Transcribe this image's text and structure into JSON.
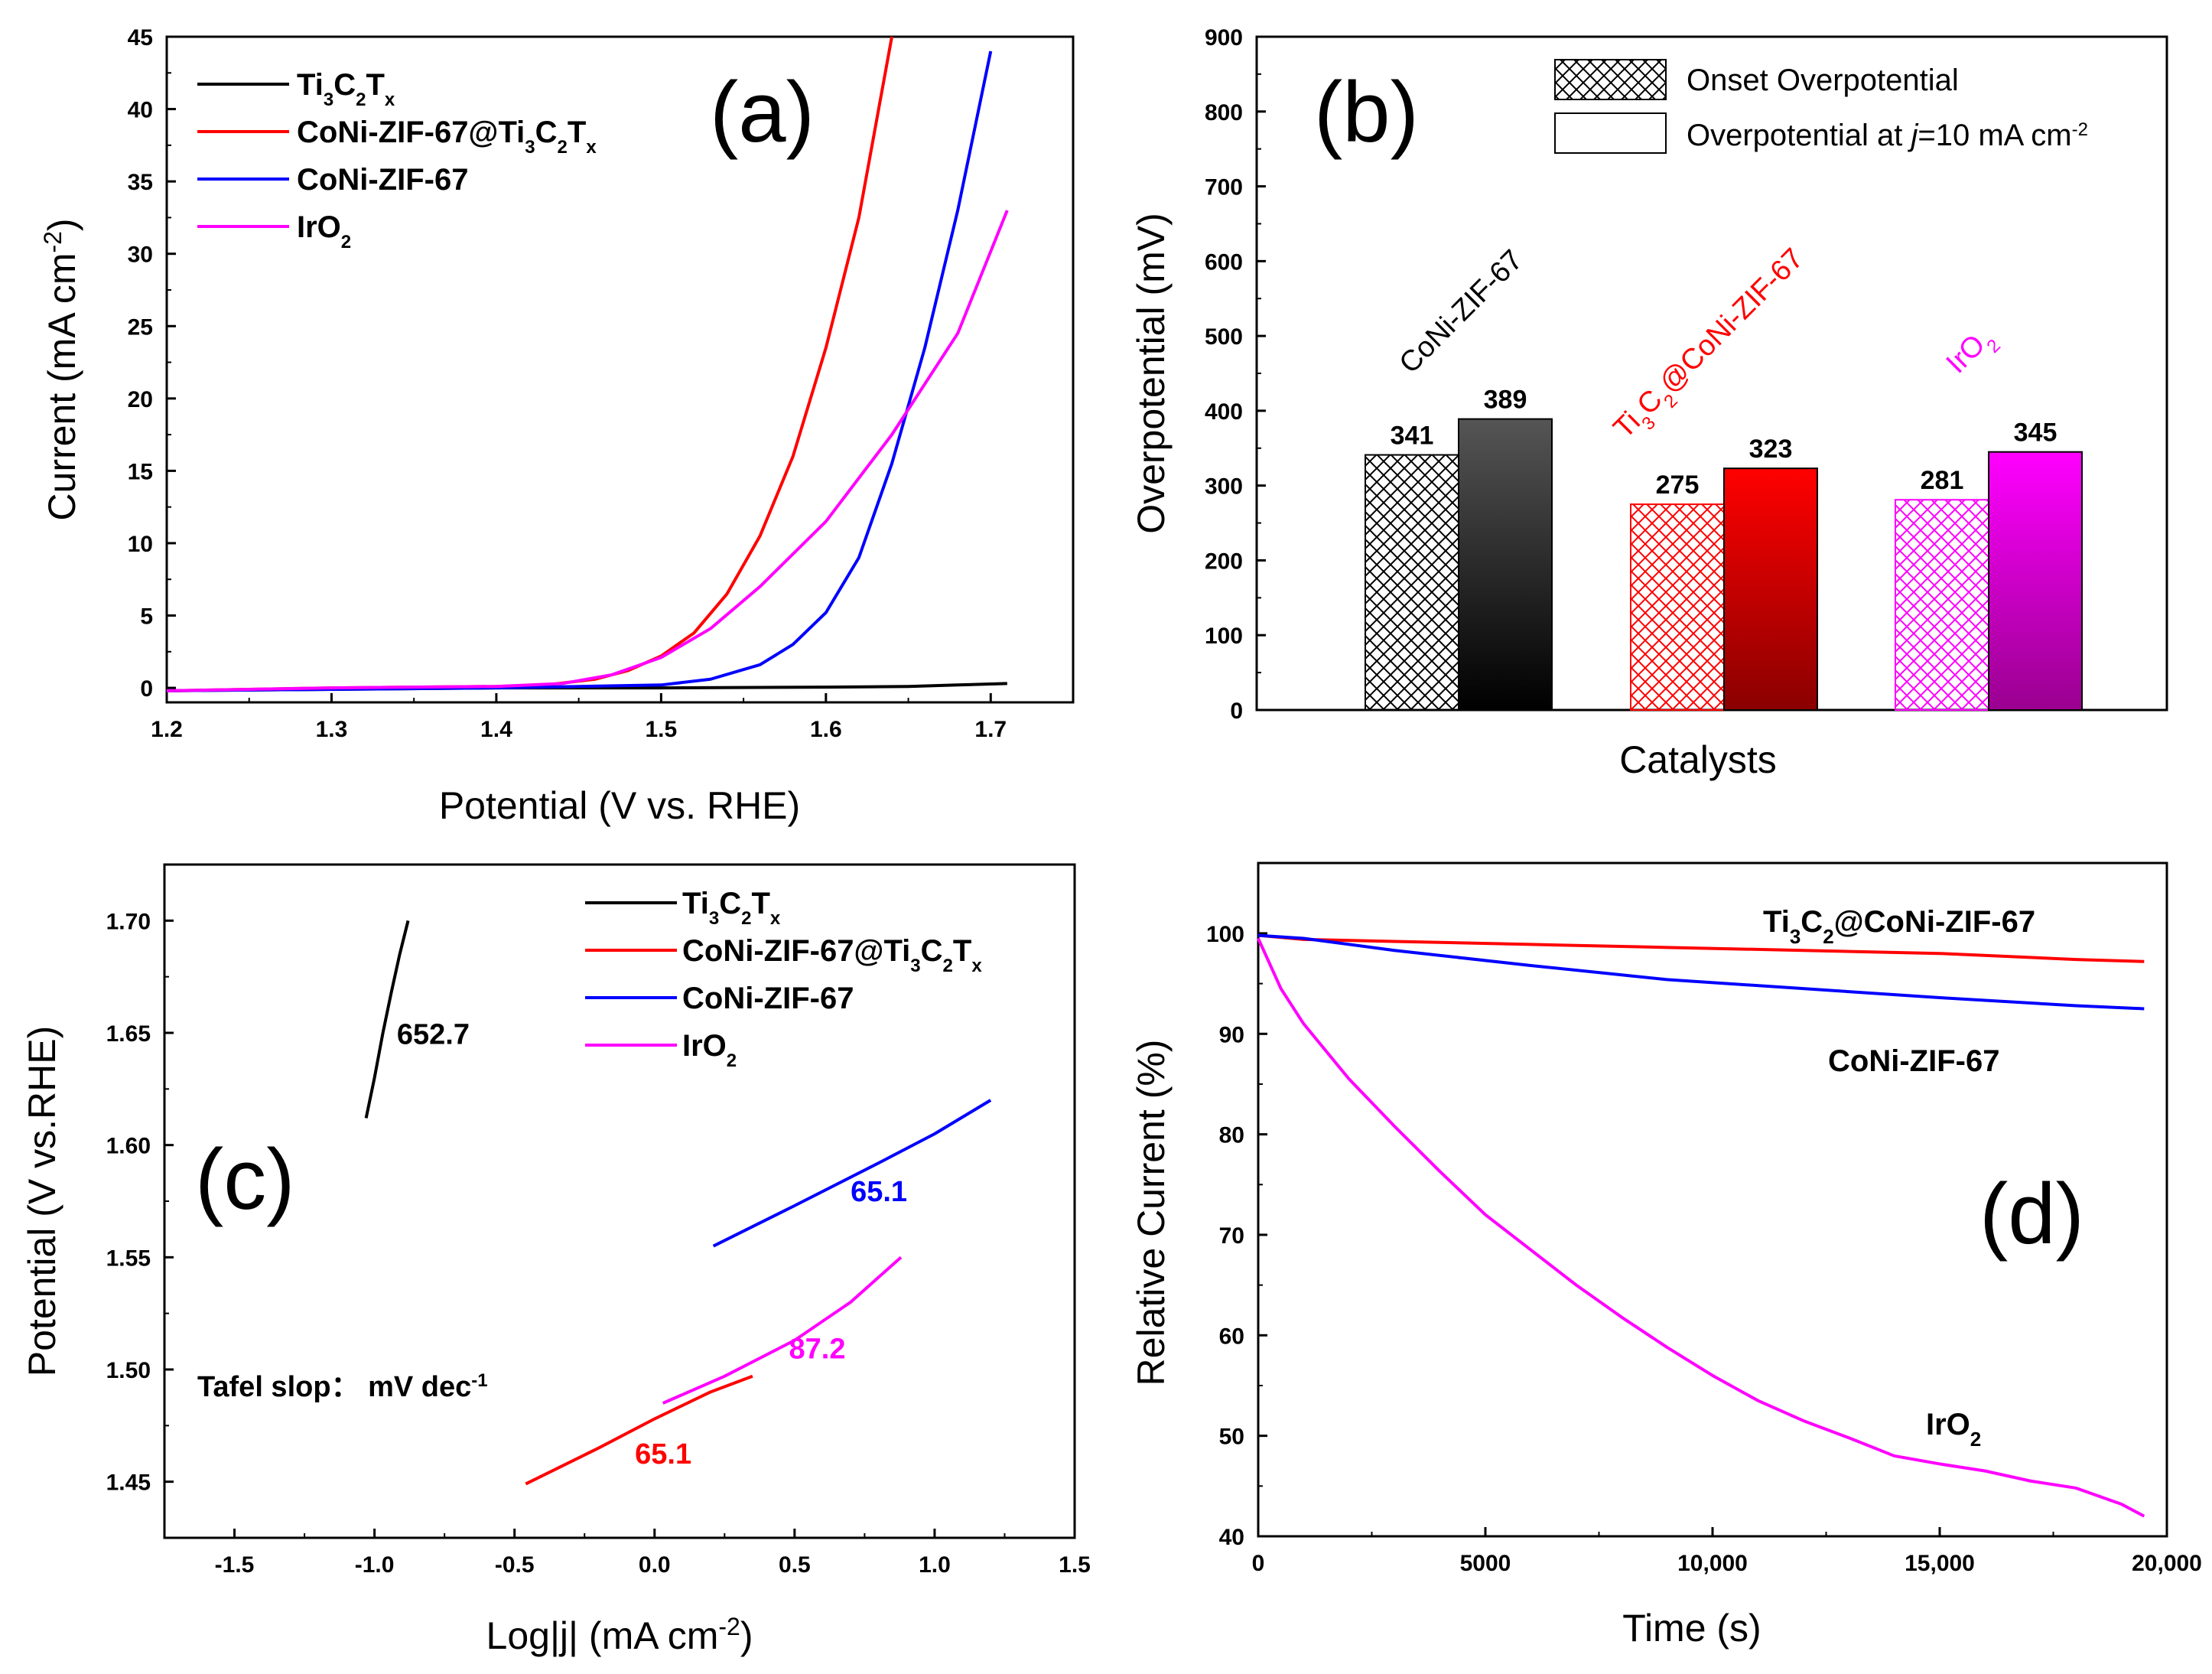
{
  "chart_data": [
    {
      "panel": "(a)",
      "type": "line",
      "xlabel": "Potential (V vs. RHE)",
      "ylabel": "Current (mA cm-2)",
      "ylabel_parts": {
        "main": "Current (mA cm",
        "sup": "-2",
        "close": ")"
      },
      "xlim": [
        1.2,
        1.75
      ],
      "ylim": [
        -1,
        45
      ],
      "xticks": [
        1.2,
        1.3,
        1.4,
        1.5,
        1.6,
        1.7
      ],
      "xtick_labels": [
        "1.2",
        "1.3",
        "1.4",
        "1.5",
        "1.6",
        "1.7"
      ],
      "yticks": [
        0,
        5,
        10,
        15,
        20,
        25,
        30,
        35,
        40,
        45
      ],
      "ytick_labels": [
        "0",
        "5",
        "10",
        "15",
        "20",
        "25",
        "30",
        "35",
        "40",
        "45"
      ],
      "legend_position": "top-left",
      "series": [
        {
          "name": "Ti3C2Tx",
          "name_parts": [
            [
              "Ti",
              ""
            ],
            [
              "3",
              "sub"
            ],
            [
              "C",
              ""
            ],
            [
              "2",
              "sub"
            ],
            [
              "T",
              ""
            ],
            [
              "x",
              "sub"
            ]
          ],
          "color": "#000000",
          "x": [
            1.2,
            1.3,
            1.4,
            1.5,
            1.6,
            1.65,
            1.68,
            1.71
          ],
          "y": [
            -0.2,
            -0.1,
            0.0,
            0.0,
            0.05,
            0.1,
            0.2,
            0.3
          ]
        },
        {
          "name": "CoNi-ZIF-67@Ti3C2Tx",
          "name_parts": [
            [
              "CoNi-ZIF-67@Ti",
              ""
            ],
            [
              "3",
              "sub"
            ],
            [
              "C",
              ""
            ],
            [
              "2",
              "sub"
            ],
            [
              "T",
              ""
            ],
            [
              "x",
              "sub"
            ]
          ],
          "color": "#ff0000",
          "x": [
            1.2,
            1.3,
            1.4,
            1.43,
            1.46,
            1.48,
            1.5,
            1.52,
            1.54,
            1.56,
            1.58,
            1.6,
            1.62,
            1.64
          ],
          "y": [
            -0.2,
            0.0,
            0.1,
            0.2,
            0.6,
            1.2,
            2.2,
            3.8,
            6.5,
            10.5,
            16,
            23.5,
            32.5,
            45
          ]
        },
        {
          "name": "CoNi-ZIF-67",
          "name_parts": [
            [
              "CoNi-ZIF-67",
              ""
            ]
          ],
          "color": "#0000ff",
          "x": [
            1.2,
            1.3,
            1.4,
            1.5,
            1.53,
            1.56,
            1.58,
            1.6,
            1.62,
            1.64,
            1.66,
            1.68,
            1.7
          ],
          "y": [
            -0.2,
            -0.1,
            0.0,
            0.2,
            0.6,
            1.6,
            3.0,
            5.2,
            9.0,
            15.5,
            23.5,
            33,
            44
          ]
        },
        {
          "name": "IrO2",
          "name_parts": [
            [
              "IrO",
              ""
            ],
            [
              "2",
              "sub"
            ]
          ],
          "color": "#ff00ff",
          "x": [
            1.2,
            1.3,
            1.4,
            1.44,
            1.47,
            1.5,
            1.53,
            1.56,
            1.6,
            1.64,
            1.68,
            1.71
          ],
          "y": [
            -0.2,
            0.0,
            0.1,
            0.3,
            0.9,
            2.1,
            4.1,
            7.0,
            11.5,
            17.5,
            24.5,
            33
          ]
        }
      ],
      "annotations": []
    },
    {
      "panel": "(b)",
      "type": "bar",
      "xlabel": "Catalysts",
      "ylabel": "Overpotential (mV)",
      "ylim": [
        0,
        900
      ],
      "yticks": [
        0,
        100,
        200,
        300,
        400,
        500,
        600,
        700,
        800,
        900
      ],
      "ytick_labels": [
        "0",
        "100",
        "200",
        "300",
        "400",
        "500",
        "600",
        "700",
        "800",
        "900"
      ],
      "categories": [
        "CoNi-ZIF-67",
        "Ti3C2@CoNi-ZIF-67",
        "IrO2"
      ],
      "category_parts": [
        [
          [
            "CoNi-ZIF-67",
            ""
          ]
        ],
        [
          [
            "Ti",
            ""
          ],
          [
            "3",
            "sub"
          ],
          [
            "C",
            ""
          ],
          [
            "2",
            "sub"
          ],
          [
            "@CoNi-ZIF-67",
            ""
          ]
        ],
        [
          [
            "IrO",
            ""
          ],
          [
            "2",
            "sub"
          ]
        ]
      ],
      "category_colors": [
        "#000000",
        "#ff0000",
        "#ff00ff"
      ],
      "series": [
        {
          "name": "Onset Overpotential",
          "pattern": "crosshatch",
          "values": [
            341,
            275,
            281
          ]
        },
        {
          "name": "Overpotential at j=10 mA cm-2",
          "pattern": "gradient",
          "values": [
            389,
            323,
            345
          ]
        }
      ],
      "legend_labels": {
        "onset": "Onset Overpotential",
        "at10_pre": "Overpotential at ",
        "at10_j": "j",
        "at10_mid": "=10 mA cm",
        "at10_sup": "-2"
      },
      "legend_position": "top-right"
    },
    {
      "panel": "(c)",
      "type": "line",
      "xlabel": "Log|j| (mA cm-2)",
      "xlabel_parts": {
        "main": "Log|j| (mA cm",
        "sup": "-2",
        "close": ")"
      },
      "ylabel": "Potential (V vs.RHE)",
      "xlim": [
        -1.75,
        1.5
      ],
      "ylim": [
        1.425,
        1.725
      ],
      "xticks": [
        -1.5,
        -1.0,
        -0.5,
        0.0,
        0.5,
        1.0,
        1.5
      ],
      "xtick_labels": [
        "-1.5",
        "-1.0",
        "-0.5",
        "0.0",
        "0.5",
        "1.0",
        "1.5"
      ],
      "yticks": [
        1.45,
        1.5,
        1.55,
        1.6,
        1.65,
        1.7
      ],
      "ytick_labels": [
        "1.45",
        "1.50",
        "1.55",
        "1.60",
        "1.65",
        "1.70"
      ],
      "legend_position": "top-right",
      "series": [
        {
          "name": "Ti3C2Tx",
          "name_parts": [
            [
              "Ti",
              ""
            ],
            [
              "3",
              "sub"
            ],
            [
              "C",
              ""
            ],
            [
              "2",
              "sub"
            ],
            [
              "T",
              ""
            ],
            [
              "x",
              "sub"
            ]
          ],
          "color": "#000000",
          "x": [
            -1.03,
            -1.0,
            -0.97,
            -0.94,
            -0.91,
            -0.88
          ],
          "y": [
            1.612,
            1.63,
            1.65,
            1.668,
            1.685,
            1.7
          ]
        },
        {
          "name": "CoNi-ZIF-67@Ti3C2Tx",
          "name_parts": [
            [
              "CoNi-ZIF-67@Ti",
              ""
            ],
            [
              "3",
              "sub"
            ],
            [
              "C",
              ""
            ],
            [
              "2",
              "sub"
            ],
            [
              "T",
              ""
            ],
            [
              "x",
              "sub"
            ]
          ],
          "color": "#ff0000",
          "x": [
            -0.46,
            -0.2,
            0.0,
            0.2,
            0.35
          ],
          "y": [
            1.449,
            1.465,
            1.478,
            1.49,
            1.497
          ]
        },
        {
          "name": "CoNi-ZIF-67",
          "name_parts": [
            [
              "CoNi-ZIF-67",
              ""
            ]
          ],
          "color": "#0000ff",
          "x": [
            0.21,
            0.5,
            0.8,
            1.0,
            1.2
          ],
          "y": [
            1.555,
            1.573,
            1.592,
            1.605,
            1.62
          ]
        },
        {
          "name": "IrO2",
          "name_parts": [
            [
              "IrO",
              ""
            ],
            [
              "2",
              "sub"
            ]
          ],
          "color": "#ff00ff",
          "x": [
            0.03,
            0.25,
            0.5,
            0.7,
            0.88
          ],
          "y": [
            1.485,
            1.497,
            1.513,
            1.53,
            1.55
          ]
        }
      ],
      "annotations": [
        {
          "text": "652.7",
          "color": "#000000",
          "x": -0.92,
          "y": 1.645
        },
        {
          "text": "65.1",
          "color": "#0000ff",
          "x": 0.7,
          "y": 1.575
        },
        {
          "text": "87.2",
          "color": "#ff00ff",
          "x": 0.48,
          "y": 1.505
        },
        {
          "text": "65.1",
          "color": "#ff0000",
          "x": -0.07,
          "y": 1.458
        }
      ],
      "tafel_note": {
        "main": "Tafel slop： mV dec",
        "sup": "-1"
      }
    },
    {
      "panel": "(d)",
      "type": "line",
      "xlabel": "Time (s)",
      "ylabel": "Relative Current (%)",
      "xlim": [
        0,
        20000
      ],
      "ylim": [
        40,
        107
      ],
      "xticks": [
        0,
        5000,
        10000,
        15000,
        20000
      ],
      "xtick_labels": [
        "0",
        "5000",
        "10,000",
        "15,000",
        "20,000"
      ],
      "yticks": [
        40,
        50,
        60,
        70,
        80,
        90,
        100
      ],
      "ytick_labels": [
        "40",
        "50",
        "60",
        "70",
        "80",
        "90",
        "100"
      ],
      "series": [
        {
          "name": "Ti3C2@CoNi-ZIF-67",
          "name_parts": [
            [
              "Ti",
              ""
            ],
            [
              "3",
              "sub"
            ],
            [
              "C",
              ""
            ],
            [
              "2",
              "sub"
            ],
            [
              "@CoNi-ZIF-67",
              ""
            ]
          ],
          "color": "#ff0000",
          "x": [
            0,
            1000,
            3000,
            6000,
            9000,
            12000,
            15000,
            18000,
            19500
          ],
          "y": [
            99.8,
            99.4,
            99.2,
            98.9,
            98.6,
            98.3,
            98.0,
            97.4,
            97.2
          ]
        },
        {
          "name": "CoNi-ZIF-67",
          "name_parts": [
            [
              "CoNi-ZIF-67",
              ""
            ]
          ],
          "color": "#0000ff",
          "x": [
            0,
            1000,
            3000,
            6000,
            9000,
            12000,
            15000,
            18000,
            19500
          ],
          "y": [
            99.8,
            99.5,
            98.3,
            96.8,
            95.4,
            94.5,
            93.6,
            92.8,
            92.5
          ]
        },
        {
          "name": "IrO2",
          "name_parts": [
            [
              "IrO",
              ""
            ],
            [
              "2",
              "sub"
            ]
          ],
          "color": "#ff00ff",
          "x": [
            0,
            500,
            1000,
            2000,
            3000,
            4000,
            5000,
            6000,
            7000,
            8000,
            9000,
            10000,
            11000,
            12000,
            13000,
            14000,
            15000,
            16000,
            17000,
            18000,
            19000,
            19500
          ],
          "y": [
            99.5,
            94.5,
            91.0,
            85.5,
            80.8,
            76.3,
            72.0,
            68.5,
            65.0,
            61.8,
            58.8,
            56.0,
            53.5,
            51.5,
            49.8,
            48.0,
            47.2,
            46.5,
            45.5,
            44.8,
            43.2,
            42.0
          ]
        }
      ],
      "label_positions": [
        "top-right",
        "middle-right",
        "bottom-right"
      ]
    }
  ]
}
